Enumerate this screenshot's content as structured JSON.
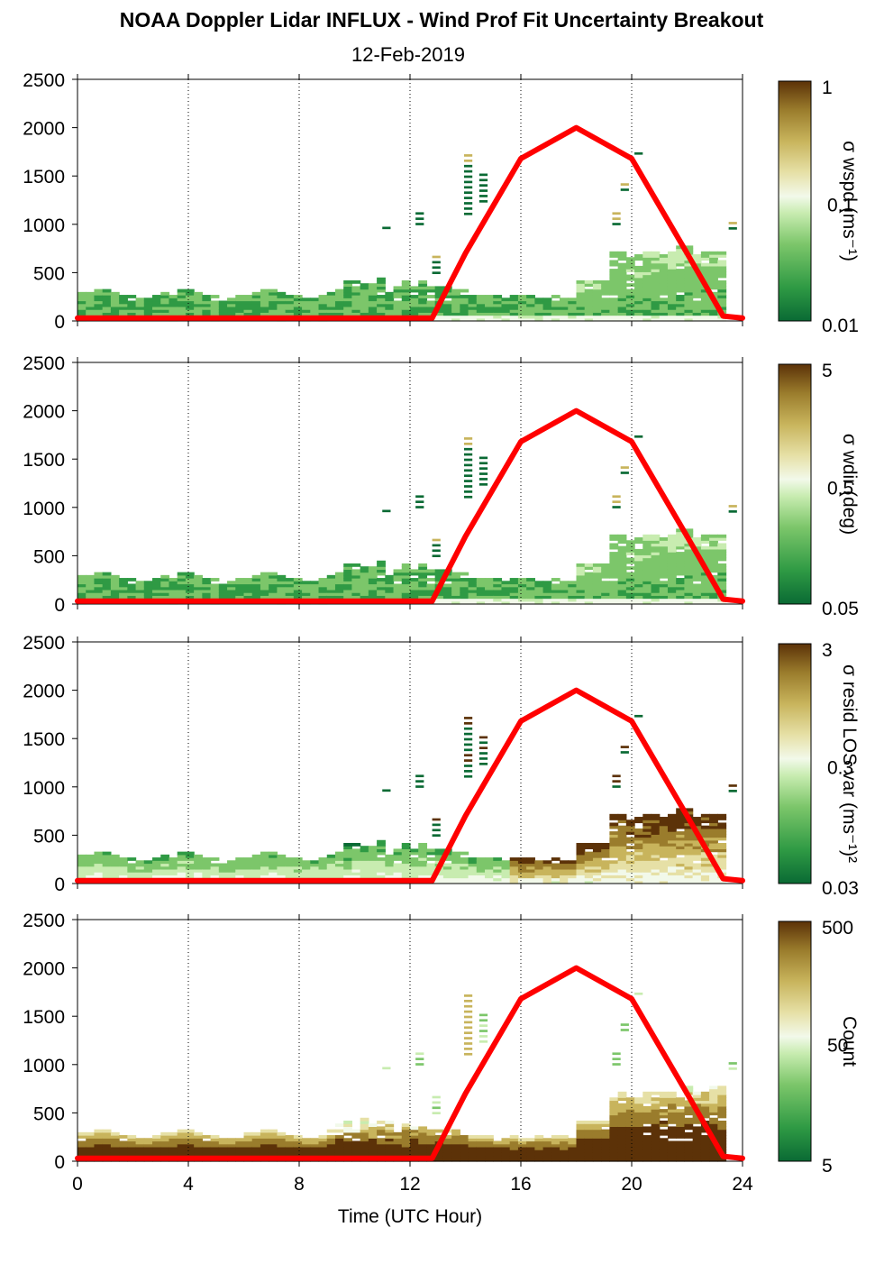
{
  "title": "NOAA Doppler Lidar INFLUX - Wind Prof Fit Uncertainty Breakout",
  "subtitle": "12-Feb-2019",
  "colors": {
    "line": "#ff0000",
    "palette": [
      "#0a6a34",
      "#2f9a44",
      "#7cc66a",
      "#c8ecb0",
      "#f2f9ea",
      "#e6e0a6",
      "#c8b45c",
      "#9a7c2c",
      "#5c3208"
    ]
  },
  "chart_data": [
    {
      "type": "heatmap",
      "colorbar_label": "σ wspd (ms⁻¹)",
      "colorbar_ticks": [
        "1",
        "0.1",
        "0.01"
      ],
      "colorbar_scale": "log",
      "xlabel": "",
      "xlim": [
        0,
        24
      ],
      "x_ticks": [
        0,
        4,
        8,
        12,
        16,
        20,
        24
      ],
      "ylim": [
        0,
        2500
      ],
      "y_ticks": [
        0,
        500,
        1000,
        1500,
        2000,
        2500
      ],
      "field": "wspd",
      "line": {
        "name": "",
        "x": [
          0,
          12.8,
          14,
          16,
          18,
          20,
          22,
          23.3,
          24
        ],
        "y": [
          30,
          30,
          700,
          1680,
          2000,
          1680,
          700,
          50,
          30
        ]
      }
    },
    {
      "type": "heatmap",
      "colorbar_label": "σ wdir (deg)",
      "colorbar_ticks": [
        "5",
        "0.5",
        "0.05"
      ],
      "colorbar_scale": "log",
      "xlabel": "",
      "xlim": [
        0,
        24
      ],
      "x_ticks": [
        0,
        4,
        8,
        12,
        16,
        20,
        24
      ],
      "ylim": [
        0,
        2500
      ],
      "y_ticks": [
        0,
        500,
        1000,
        1500,
        2000,
        2500
      ],
      "field": "wdir",
      "line": {
        "name": "",
        "x": [
          0,
          12.8,
          14,
          16,
          18,
          20,
          22,
          23.3,
          24
        ],
        "y": [
          30,
          30,
          700,
          1680,
          2000,
          1680,
          700,
          50,
          30
        ]
      }
    },
    {
      "type": "heatmap",
      "colorbar_label": "σ resid LOS var (ms⁻¹)²",
      "colorbar_ticks": [
        "3",
        "0.3",
        "0.03"
      ],
      "colorbar_scale": "log",
      "xlabel": "",
      "xlim": [
        0,
        24
      ],
      "x_ticks": [
        0,
        4,
        8,
        12,
        16,
        20,
        24
      ],
      "ylim": [
        0,
        2500
      ],
      "y_ticks": [
        0,
        500,
        1000,
        1500,
        2000,
        2500
      ],
      "field": "resid",
      "line": {
        "name": "",
        "x": [
          0,
          12.8,
          14,
          16,
          18,
          20,
          22,
          23.3,
          24
        ],
        "y": [
          30,
          30,
          700,
          1680,
          2000,
          1680,
          700,
          50,
          30
        ]
      }
    },
    {
      "type": "heatmap",
      "colorbar_label": "Count",
      "colorbar_ticks": [
        "500",
        "50",
        "5"
      ],
      "colorbar_scale": "log",
      "xlabel": "Time (UTC Hour)",
      "xlim": [
        0,
        24
      ],
      "x_ticks": [
        0,
        4,
        8,
        12,
        16,
        20,
        24
      ],
      "ylim": [
        0,
        2500
      ],
      "y_ticks": [
        0,
        500,
        1000,
        1500,
        2000,
        2500
      ],
      "field": "count",
      "line": {
        "name": "",
        "x": [
          0,
          12.8,
          14,
          16,
          18,
          20,
          22,
          23.3,
          24
        ],
        "y": [
          30,
          30,
          700,
          1680,
          2000,
          1680,
          700,
          50,
          30
        ]
      }
    }
  ]
}
